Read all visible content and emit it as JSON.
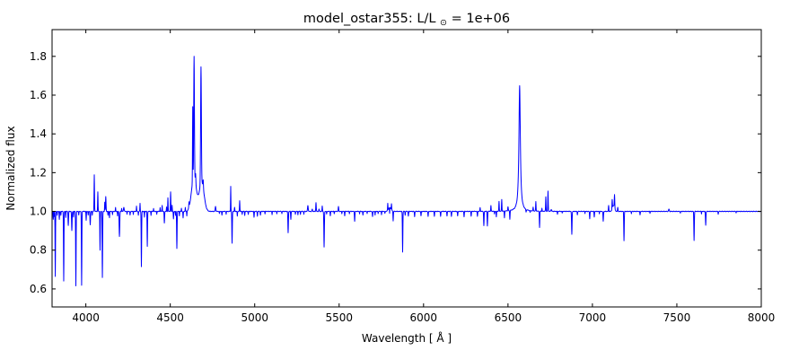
{
  "chart_data": {
    "type": "line",
    "title": "model_ostar355: L/L⊙ = 1e+06",
    "title_parts": {
      "prefix": "model_ostar355: L/L",
      "odot": "⊙",
      "suffix": " = 1e+06"
    },
    "xlabel": "Wavelength [ Å ]",
    "ylabel": "Normalized flux",
    "xlim": [
      3800,
      8000
    ],
    "ylim": [
      0.507,
      1.938
    ],
    "xticks": [
      4000,
      4500,
      5000,
      5500,
      6000,
      6500,
      7000,
      7500,
      8000
    ],
    "yticks": [
      0.6,
      0.8,
      1.0,
      1.2,
      1.4,
      1.6,
      1.8
    ],
    "line_color": "#0000ff",
    "frame_color": "#000000",
    "background": "#ffffff",
    "continuum_level": 1.0,
    "features_format": [
      "center_wavelength_A",
      "amplitude_rel_continuum",
      "width_A",
      "profile g=gaussian l=lorentzian (default g)"
    ],
    "features": [
      [
        3807,
        -0.04,
        1.2
      ],
      [
        3813,
        -0.028,
        1
      ],
      [
        3819,
        -0.335,
        1.2
      ],
      [
        3830,
        -0.022,
        1
      ],
      [
        3843,
        -0.042,
        1.2
      ],
      [
        3852,
        -0.02,
        1
      ],
      [
        3869,
        -0.36,
        1.3
      ],
      [
        3881,
        -0.03,
        1
      ],
      [
        3896,
        -0.072,
        1.5
      ],
      [
        3917,
        -0.1,
        1.5
      ],
      [
        3927,
        -0.03,
        1
      ],
      [
        3941,
        -0.385,
        1.3
      ],
      [
        3958,
        -0.02,
        1
      ],
      [
        3975,
        -0.382,
        1.3
      ],
      [
        4002,
        -0.046,
        1.2
      ],
      [
        4014,
        -0.02,
        1
      ],
      [
        4026,
        -0.068,
        1.5
      ],
      [
        4038,
        -0.02,
        1
      ],
      [
        4050,
        0.19,
        1.3
      ],
      [
        4071,
        0.1,
        1.2
      ],
      [
        4084,
        -0.2,
        1.2
      ],
      [
        4098,
        -0.34,
        1.4
      ],
      [
        4112,
        0.048,
        1
      ],
      [
        4118,
        0.075,
        1.6
      ],
      [
        4131,
        -0.02,
        1
      ],
      [
        4140,
        -0.032,
        1.2
      ],
      [
        4158,
        -0.018,
        1
      ],
      [
        4176,
        0.02,
        1
      ],
      [
        4188,
        -0.024,
        1
      ],
      [
        4199,
        -0.13,
        1.8
      ],
      [
        4212,
        0.016,
        1
      ],
      [
        4225,
        0.022,
        2
      ],
      [
        4244,
        -0.015,
        1
      ],
      [
        4262,
        -0.02,
        1.2
      ],
      [
        4281,
        -0.015,
        1
      ],
      [
        4300,
        0.028,
        1
      ],
      [
        4311,
        -0.02,
        1
      ],
      [
        4321,
        0.042,
        1
      ],
      [
        4329,
        -0.285,
        1.3
      ],
      [
        4347,
        -0.03,
        1
      ],
      [
        4364,
        -0.18,
        1.3
      ],
      [
        4386,
        -0.02,
        1
      ],
      [
        4401,
        0.015,
        1
      ],
      [
        4420,
        -0.015,
        1
      ],
      [
        4440,
        0.02,
        1
      ],
      [
        4452,
        0.032,
        1
      ],
      [
        4465,
        -0.06,
        1.4
      ],
      [
        4478,
        0.022,
        1
      ],
      [
        4486,
        0.07,
        1.2
      ],
      [
        4502,
        0.1,
        1.3
      ],
      [
        4511,
        0.032,
        1
      ],
      [
        4519,
        -0.04,
        1.2
      ],
      [
        4531,
        -0.02,
        1
      ],
      [
        4539,
        -0.19,
        1.4
      ],
      [
        4554,
        -0.022,
        1
      ],
      [
        4566,
        0.016,
        1
      ],
      [
        4576,
        -0.035,
        1.2
      ],
      [
        4589,
        0.02,
        1
      ],
      [
        4598,
        -0.025,
        1
      ],
      [
        4611,
        0.03,
        1.5
      ],
      [
        4640,
        0.18,
        14
      ],
      [
        4686,
        0.15,
        14
      ],
      [
        4633,
        0.38,
        1.2
      ],
      [
        4641,
        0.62,
        2.0
      ],
      [
        4650,
        0.05,
        1.5
      ],
      [
        4682,
        0.6,
        2.2
      ],
      [
        4695,
        0.04,
        1.5
      ],
      [
        4768,
        0.025,
        2
      ],
      [
        4791,
        -0.012,
        1
      ],
      [
        4806,
        -0.02,
        1.2
      ],
      [
        4831,
        -0.015,
        1
      ],
      [
        4858,
        0.13,
        1.0
      ],
      [
        4866,
        -0.165,
        1.4
      ],
      [
        4881,
        0.02,
        1.2
      ],
      [
        4897,
        -0.025,
        1
      ],
      [
        4911,
        0.055,
        1.2
      ],
      [
        4926,
        -0.015,
        1
      ],
      [
        4941,
        -0.02,
        1.2
      ],
      [
        4962,
        -0.016,
        1
      ],
      [
        4996,
        -0.03,
        1.3
      ],
      [
        5016,
        -0.025,
        1.2
      ],
      [
        5034,
        -0.02,
        1.2
      ],
      [
        5061,
        -0.012,
        1
      ],
      [
        5103,
        -0.016,
        1
      ],
      [
        5131,
        -0.012,
        1
      ],
      [
        5161,
        -0.012,
        1
      ],
      [
        5198,
        -0.11,
        1.5
      ],
      [
        5214,
        -0.04,
        1.3
      ],
      [
        5241,
        -0.016,
        1
      ],
      [
        5256,
        -0.018,
        1
      ],
      [
        5271,
        -0.015,
        1
      ],
      [
        5291,
        -0.015,
        1
      ],
      [
        5315,
        0.03,
        2
      ],
      [
        5341,
        0.012,
        1.5
      ],
      [
        5363,
        0.045,
        1.4
      ],
      [
        5381,
        0.012,
        1.5
      ],
      [
        5400,
        0.028,
        1.2
      ],
      [
        5411,
        -0.185,
        1.5
      ],
      [
        5426,
        -0.015,
        1
      ],
      [
        5448,
        -0.022,
        1.2
      ],
      [
        5471,
        -0.012,
        1
      ],
      [
        5496,
        0.025,
        1.5
      ],
      [
        5516,
        -0.012,
        1
      ],
      [
        5533,
        -0.022,
        1.2
      ],
      [
        5561,
        -0.012,
        1
      ],
      [
        5592,
        -0.05,
        1.4
      ],
      [
        5621,
        -0.012,
        1
      ],
      [
        5641,
        -0.02,
        1.2
      ],
      [
        5666,
        -0.012,
        1
      ],
      [
        5698,
        -0.028,
        1.3
      ],
      [
        5713,
        -0.02,
        1
      ],
      [
        5731,
        -0.012,
        1
      ],
      [
        5751,
        -0.016,
        1
      ],
      [
        5771,
        -0.012,
        1
      ],
      [
        5800,
        0.02,
        8
      ],
      [
        5788,
        0.035,
        1.1
      ],
      [
        5799,
        -0.03,
        1
      ],
      [
        5810,
        0.03,
        1.1
      ],
      [
        5820,
        -0.05,
        1.2
      ],
      [
        5876,
        -0.21,
        1.3
      ],
      [
        5891,
        -0.02,
        1
      ],
      [
        5910,
        -0.024,
        1.3
      ],
      [
        5947,
        -0.028,
        1.3
      ],
      [
        5985,
        -0.023,
        1.3
      ],
      [
        6027,
        -0.027,
        1.3
      ],
      [
        6064,
        -0.024,
        1.3
      ],
      [
        6101,
        -0.027,
        1.3
      ],
      [
        6139,
        -0.024,
        1.3
      ],
      [
        6165,
        -0.026,
        1.3
      ],
      [
        6202,
        -0.024,
        1.3
      ],
      [
        6240,
        -0.027,
        1.3
      ],
      [
        6282,
        -0.024,
        1.3
      ],
      [
        6319,
        -0.026,
        1.3
      ],
      [
        6335,
        0.02,
        1.2
      ],
      [
        6357,
        -0.075,
        1.4
      ],
      [
        6378,
        -0.075,
        1.4
      ],
      [
        6399,
        0.03,
        1.2
      ],
      [
        6420,
        -0.015,
        1
      ],
      [
        6431,
        -0.03,
        1.2
      ],
      [
        6447,
        0.05,
        1.2
      ],
      [
        6463,
        0.06,
        1.2
      ],
      [
        6479,
        -0.035,
        1.2
      ],
      [
        6500,
        0.02,
        1.5
      ],
      [
        6511,
        -0.045,
        1.3
      ],
      [
        6569,
        0.65,
        5,
        "l"
      ],
      [
        6607,
        -0.015,
        1.5
      ],
      [
        6631,
        -0.01,
        1
      ],
      [
        6649,
        0.02,
        1.2
      ],
      [
        6665,
        0.05,
        1.2
      ],
      [
        6687,
        -0.085,
        1.3
      ],
      [
        6701,
        0.015,
        1
      ],
      [
        6724,
        0.075,
        1.3
      ],
      [
        6737,
        0.105,
        1.3
      ],
      [
        6756,
        0.01,
        2
      ],
      [
        6793,
        -0.015,
        1.2
      ],
      [
        6821,
        -0.01,
        1
      ],
      [
        6878,
        -0.12,
        1.5
      ],
      [
        6911,
        -0.018,
        1.2
      ],
      [
        6956,
        -0.01,
        1
      ],
      [
        6984,
        -0.038,
        1.3
      ],
      [
        7011,
        -0.028,
        1.3
      ],
      [
        7041,
        -0.012,
        1
      ],
      [
        7064,
        -0.052,
        1.4
      ],
      [
        7096,
        0.03,
        1.3
      ],
      [
        7117,
        0.05,
        1.3
      ],
      [
        7125,
        0.03,
        6
      ],
      [
        7131,
        0.07,
        1.4
      ],
      [
        7150,
        0.02,
        1.5
      ],
      [
        7187,
        -0.15,
        1.4
      ],
      [
        7231,
        -0.012,
        1
      ],
      [
        7282,
        -0.018,
        1.3
      ],
      [
        7341,
        -0.01,
        1
      ],
      [
        7453,
        0.012,
        2
      ],
      [
        7521,
        -0.01,
        1
      ],
      [
        7602,
        -0.15,
        1.4
      ],
      [
        7646,
        -0.012,
        1
      ],
      [
        7671,
        -0.072,
        1.4
      ],
      [
        7745,
        -0.015,
        1.2
      ],
      [
        7851,
        -0.008,
        1
      ]
    ]
  }
}
